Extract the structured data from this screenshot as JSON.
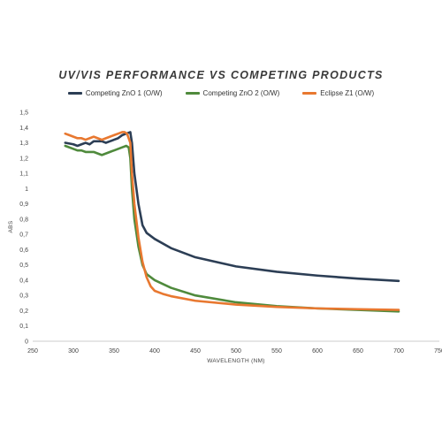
{
  "chart_data": {
    "type": "line",
    "title": "UV/VIS PERFORMANCE VS COMPETING PRODUCTS",
    "xlabel": "WAVELENGTH (NM)",
    "ylabel": "ABS",
    "xlim": [
      250,
      750
    ],
    "ylim": [
      0,
      1.5
    ],
    "x_ticks": [
      "250",
      "300",
      "350",
      "400",
      "450",
      "500",
      "550",
      "600",
      "650",
      "700",
      "750"
    ],
    "y_ticks": [
      "0",
      "0,1",
      "0,2",
      "0,3",
      "0,4",
      "0,5",
      "0,6",
      "0,7",
      "0,8",
      "0,9",
      "1",
      "1,1",
      "1,2",
      "1,3",
      "1,4",
      "1,5"
    ],
    "grid": false,
    "legend_position": "top",
    "series": [
      {
        "name": "Competing ZnO 1 (O/W)",
        "color": "#2c3e55",
        "x": [
          290,
          300,
          305,
          310,
          315,
          320,
          325,
          330,
          335,
          340,
          345,
          350,
          355,
          360,
          365,
          370,
          372,
          375,
          380,
          385,
          390,
          400,
          420,
          450,
          500,
          550,
          600,
          650,
          700
        ],
        "y": [
          1.3,
          1.29,
          1.28,
          1.29,
          1.3,
          1.29,
          1.31,
          1.31,
          1.31,
          1.3,
          1.31,
          1.32,
          1.33,
          1.35,
          1.36,
          1.37,
          1.3,
          1.1,
          0.9,
          0.76,
          0.71,
          0.67,
          0.61,
          0.55,
          0.49,
          0.455,
          0.43,
          0.41,
          0.395
        ]
      },
      {
        "name": "Competing ZnO 2 (O/W)",
        "color": "#4f8a3c",
        "x": [
          290,
          300,
          305,
          310,
          315,
          320,
          325,
          330,
          335,
          340,
          345,
          350,
          355,
          360,
          365,
          368,
          370,
          372,
          375,
          380,
          385,
          390,
          400,
          420,
          450,
          500,
          550,
          600,
          650,
          700
        ],
        "y": [
          1.28,
          1.26,
          1.25,
          1.25,
          1.24,
          1.24,
          1.24,
          1.23,
          1.22,
          1.23,
          1.24,
          1.25,
          1.26,
          1.27,
          1.28,
          1.27,
          1.2,
          1.0,
          0.8,
          0.62,
          0.5,
          0.44,
          0.4,
          0.35,
          0.3,
          0.255,
          0.23,
          0.215,
          0.205,
          0.195
        ]
      },
      {
        "name": "Eclipse Z1 (O/W)",
        "color": "#e87830",
        "x": [
          290,
          295,
          300,
          305,
          310,
          315,
          320,
          325,
          330,
          335,
          340,
          345,
          350,
          355,
          360,
          363,
          366,
          370,
          372,
          375,
          380,
          385,
          390,
          395,
          400,
          410,
          420,
          450,
          500,
          550,
          600,
          650,
          700
        ],
        "y": [
          1.36,
          1.35,
          1.34,
          1.33,
          1.33,
          1.32,
          1.33,
          1.34,
          1.33,
          1.32,
          1.33,
          1.34,
          1.35,
          1.36,
          1.37,
          1.37,
          1.36,
          1.3,
          1.1,
          0.9,
          0.68,
          0.52,
          0.42,
          0.36,
          0.33,
          0.31,
          0.295,
          0.265,
          0.24,
          0.225,
          0.215,
          0.21,
          0.205
        ]
      }
    ]
  }
}
